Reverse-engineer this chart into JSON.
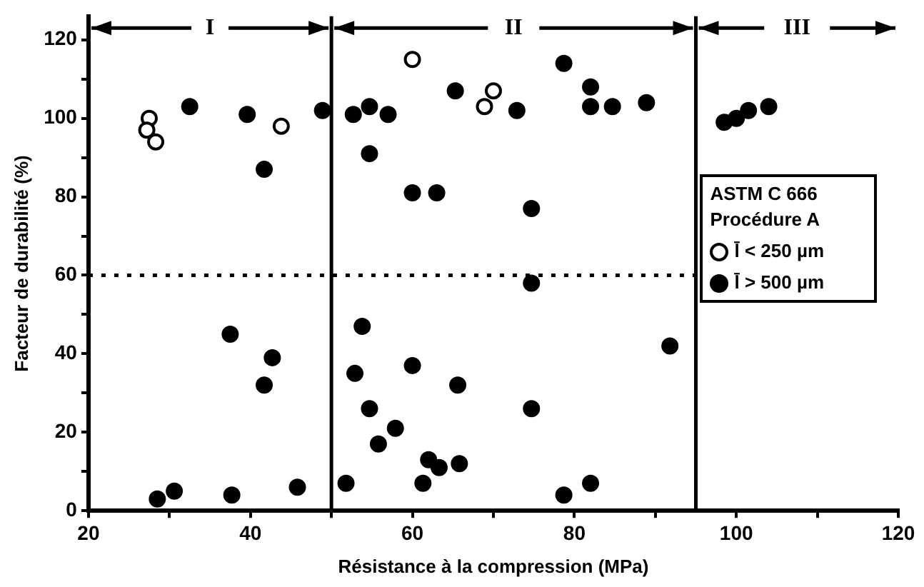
{
  "chart_data": {
    "type": "scatter",
    "xlabel": "Résistance à la compression (MPa)",
    "ylabel": "Facteur de durabilité (%)",
    "legend_title": "ASTM C 666 Procédure A",
    "legend": "right",
    "marker": "circle",
    "grid": false,
    "xlim": [
      20,
      120
    ],
    "xticks": [
      20,
      {
        "value": 30,
        "label": null
      },
      40,
      {
        "value": 50,
        "label": null
      },
      60,
      {
        "value": 70,
        "label": null
      },
      80,
      {
        "value": 90,
        "label": null
      },
      100,
      {
        "value": 110,
        "label": null
      },
      120
    ],
    "ylim": [
      0,
      126
    ],
    "yticks": [
      0,
      {
        "value": 10,
        "label": null
      },
      20,
      {
        "value": 30,
        "label": null
      },
      40,
      {
        "value": 50,
        "label": null
      },
      60,
      {
        "value": 70,
        "label": null
      },
      80,
      {
        "value": 90,
        "label": null
      },
      100,
      {
        "value": 110,
        "label": null
      },
      120
    ],
    "series": [
      {
        "name": "l̄ < 250 µm",
        "color": "#000000",
        "x": [
          27.5,
          27.2,
          28.3,
          43.8,
          60,
          70,
          68.9
        ],
        "values": [
          100,
          97,
          94,
          98,
          115,
          107,
          103
        ]
      },
      {
        "name": "l̄ > 500 µm",
        "color": "#000000",
        "x": [
          32.5,
          39.6,
          41.7,
          48.9,
          52.7,
          54.7,
          57,
          54.7,
          60,
          63,
          65.3,
          72.9,
          78.7,
          82,
          82,
          84.7,
          88.9,
          74.7,
          74.7,
          98.5,
          100,
          101.5,
          104,
          28.5,
          30.6,
          37.5,
          42.7,
          41.7,
          37.7,
          45.8,
          51.8,
          53.8,
          52.9,
          54.7,
          55.8,
          57.9,
          60,
          61.3,
          62,
          63.3,
          65.6,
          65.8,
          91.8,
          74.7,
          78.7,
          82
        ],
        "values": [
          103,
          101,
          87,
          102,
          101,
          103,
          101,
          91,
          81,
          81,
          107,
          102,
          114,
          108,
          103,
          103,
          104,
          77,
          58,
          99,
          100,
          102,
          103,
          3,
          5,
          45,
          39,
          32,
          4,
          6,
          7,
          47,
          35,
          26,
          17,
          21,
          37,
          7,
          13,
          11,
          32,
          12,
          42,
          26,
          4,
          7
        ]
      }
    ],
    "ref_lines": [
      {
        "axis": "x",
        "value": 50,
        "line_style": "solid"
      },
      {
        "axis": "x",
        "value": 95,
        "line_style": "solid"
      },
      {
        "axis": "y",
        "value": 60,
        "line_style": "dotted"
      }
    ],
    "annotations": [
      {
        "text": "I",
        "x": 50,
        "y": 123
      },
      {
        "text": "II",
        "x": 95,
        "y": 123
      },
      "III"
    ]
  }
}
